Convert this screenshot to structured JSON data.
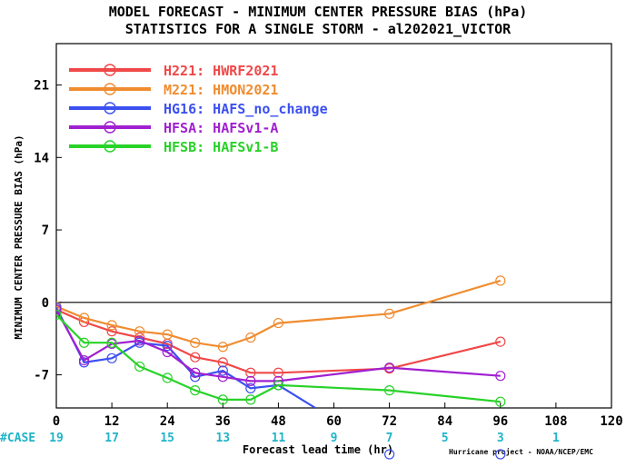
{
  "chart_data": {
    "type": "line",
    "title": "MODEL FORECAST - MINIMUM CENTER PRESSURE BIAS (hPa)",
    "subtitle": "STATISTICS FOR A SINGLE STORM - al202021_VICTOR",
    "xlabel": "Forecast lead time (hr)",
    "ylabel": "MINIMUM CENTER PRESSURE BIAS (hPa)",
    "xlim": [
      0,
      120
    ],
    "ylim": [
      -10.2,
      25
    ],
    "xticks": [
      "0",
      "12",
      "24",
      "36",
      "48",
      "60",
      "72",
      "84",
      "96",
      "108",
      "120"
    ],
    "yticks": [
      "-7",
      "0",
      "7",
      "14",
      "21"
    ],
    "legend_position": "top-left",
    "grid": false,
    "series": [
      {
        "name": "H221: HWRF2021",
        "color": "#f04848",
        "points": [
          [
            0,
            -0.7
          ],
          [
            6,
            -1.9
          ],
          [
            12,
            -2.8
          ],
          [
            18,
            -3.4
          ],
          [
            24,
            -4.0
          ],
          [
            30,
            -5.3
          ],
          [
            36,
            -5.8
          ],
          [
            42,
            -6.8
          ],
          [
            48,
            -6.8
          ],
          [
            72,
            -6.4
          ],
          [
            96,
            -3.8
          ]
        ]
      },
      {
        "name": "M221: HMON2021",
        "color": "#f08c30",
        "points": [
          [
            0,
            -0.4
          ],
          [
            6,
            -1.5
          ],
          [
            12,
            -2.2
          ],
          [
            18,
            -2.8
          ],
          [
            24,
            -3.1
          ],
          [
            30,
            -3.9
          ],
          [
            36,
            -4.3
          ],
          [
            42,
            -3.4
          ],
          [
            48,
            -2.0
          ],
          [
            72,
            -1.1
          ],
          [
            96,
            2.1
          ]
        ]
      },
      {
        "name": "HG16: HAFS_no_change",
        "color": "#3c50f0",
        "points": [
          [
            0,
            -0.5
          ],
          [
            6,
            -5.8
          ],
          [
            12,
            -5.4
          ],
          [
            18,
            -3.9
          ],
          [
            24,
            -4.2
          ],
          [
            30,
            -7.2
          ],
          [
            36,
            -6.6
          ],
          [
            42,
            -8.3
          ],
          [
            48,
            -8.0
          ],
          [
            56,
            -10.2
          ]
        ]
      },
      {
        "name": "HFSA: HAFSv1-A",
        "color": "#a020d0",
        "points": [
          [
            0,
            -0.7
          ],
          [
            6,
            -5.6
          ],
          [
            12,
            -4.0
          ],
          [
            18,
            -3.7
          ],
          [
            24,
            -4.8
          ],
          [
            30,
            -6.8
          ],
          [
            36,
            -7.2
          ],
          [
            42,
            -7.6
          ],
          [
            48,
            -7.6
          ],
          [
            72,
            -6.3
          ],
          [
            96,
            -7.1
          ]
        ]
      },
      {
        "name": "HFSB: HAFSv1-B",
        "color": "#28d228",
        "points": [
          [
            0,
            -1.2
          ],
          [
            6,
            -3.9
          ],
          [
            12,
            -3.9
          ],
          [
            18,
            -6.2
          ],
          [
            24,
            -7.3
          ],
          [
            30,
            -8.5
          ],
          [
            36,
            -9.4
          ],
          [
            42,
            -9.4
          ],
          [
            48,
            -8.0
          ],
          [
            72,
            -8.5
          ],
          [
            96,
            -9.6
          ]
        ]
      }
    ],
    "case_label": "#CASE",
    "case_counts": [
      {
        "x": 0,
        "label": "19"
      },
      {
        "x": 12,
        "label": "17"
      },
      {
        "x": 24,
        "label": "15"
      },
      {
        "x": 36,
        "label": "13"
      },
      {
        "x": 48,
        "label": "11"
      },
      {
        "x": 60,
        "label": "9"
      },
      {
        "x": 72,
        "label": "7"
      },
      {
        "x": 84,
        "label": "5"
      },
      {
        "x": 96,
        "label": "3"
      },
      {
        "x": 108,
        "label": "1"
      }
    ],
    "offscale_markers": [
      {
        "x": 72,
        "color": "#3c50f0"
      },
      {
        "x": 96,
        "color": "#3c50f0"
      }
    ],
    "credit": "Hurricane project - NOAA/NCEP/EMC",
    "colors": {
      "case_text": "#20b4c8",
      "axis": "#000000",
      "zero_line": "#000000"
    }
  }
}
